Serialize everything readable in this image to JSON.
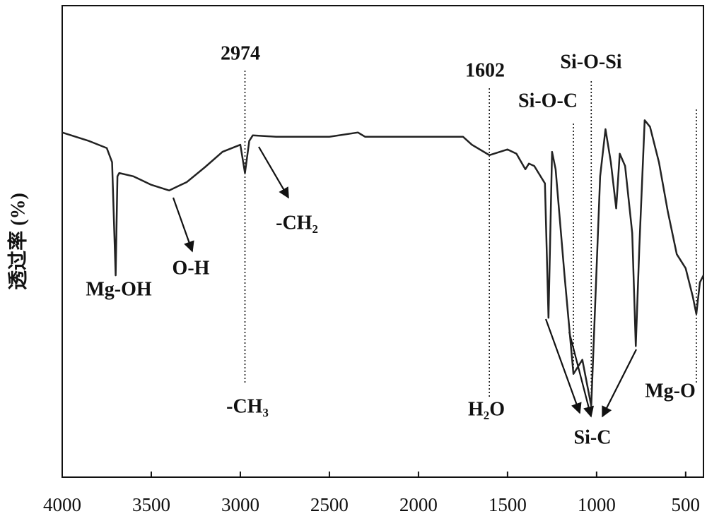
{
  "chart_data": {
    "type": "line",
    "ylabel": "透过率 (%)",
    "x": [
      4000,
      3850,
      3750,
      3720,
      3700,
      3690,
      3680,
      3600,
      3500,
      3400,
      3300,
      3200,
      3100,
      3000,
      2974,
      2950,
      2930,
      2800,
      2500,
      2340,
      2300,
      2000,
      1750,
      1700,
      1602,
      1500,
      1450,
      1400,
      1380,
      1350,
      1290,
      1270,
      1250,
      1230,
      1180,
      1130,
      1080,
      1030,
      980,
      950,
      920,
      890,
      870,
      840,
      800,
      780,
      760,
      730,
      700,
      650,
      600,
      550,
      500,
      460,
      440,
      420,
      400
    ],
    "series": [
      {
        "color": "#222222",
        "values": [
          73.1,
          71.3,
          69.8,
          66.8,
          42.8,
          63.8,
          64.5,
          63.8,
          62.0,
          60.8,
          62.6,
          65.7,
          69.0,
          70.5,
          64.5,
          71.3,
          72.5,
          72.2,
          72.2,
          73.1,
          72.2,
          72.2,
          72.2,
          70.5,
          68.3,
          69.5,
          68.6,
          65.3,
          66.5,
          66.0,
          62.3,
          33.8,
          69.0,
          65.3,
          42.8,
          21.9,
          24.9,
          15.1,
          63.8,
          73.8,
          66.8,
          57.0,
          68.6,
          66.0,
          51.8,
          27.8,
          48.8,
          75.7,
          74.3,
          66.8,
          56.3,
          47.3,
          44.3,
          38.3,
          34.6,
          41.3,
          42.8
        ]
      }
    ],
    "xlim": [
      4000,
      400
    ],
    "ylim": [
      0,
      100
    ],
    "xticks": [
      4000,
      3500,
      3000,
      2500,
      2000,
      1500,
      1000,
      500
    ],
    "vlines": [
      2974,
      1602,
      1130,
      1030,
      440
    ],
    "annotations": [
      "Mg-OH",
      "O-H",
      "-CH₂",
      "2974",
      "-CH₃",
      "1602",
      "H₂O",
      "Si-O-C",
      "Si-O-Si",
      "Si-C",
      "Mg-O"
    ]
  }
}
